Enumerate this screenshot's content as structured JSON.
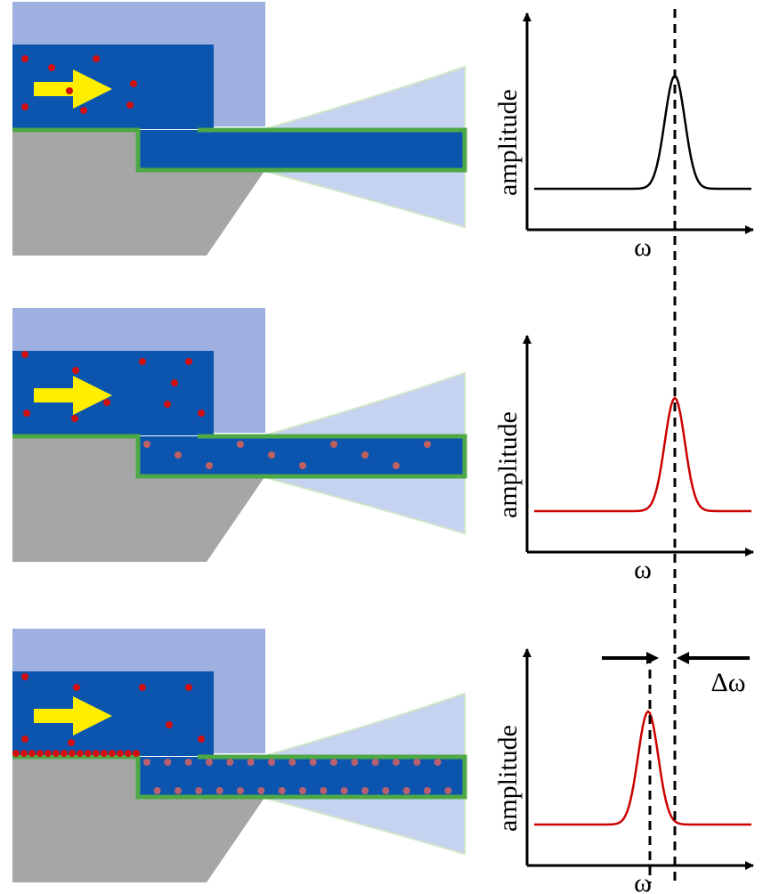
{
  "panels": [
    {
      "y_label": "amplitude",
      "x_label": "ω"
    },
    {
      "y_label": "amplitude",
      "x_label": "ω"
    },
    {
      "y_label": "amplitude",
      "x_label": "ω"
    }
  ],
  "shift_label": "Δω"
}
